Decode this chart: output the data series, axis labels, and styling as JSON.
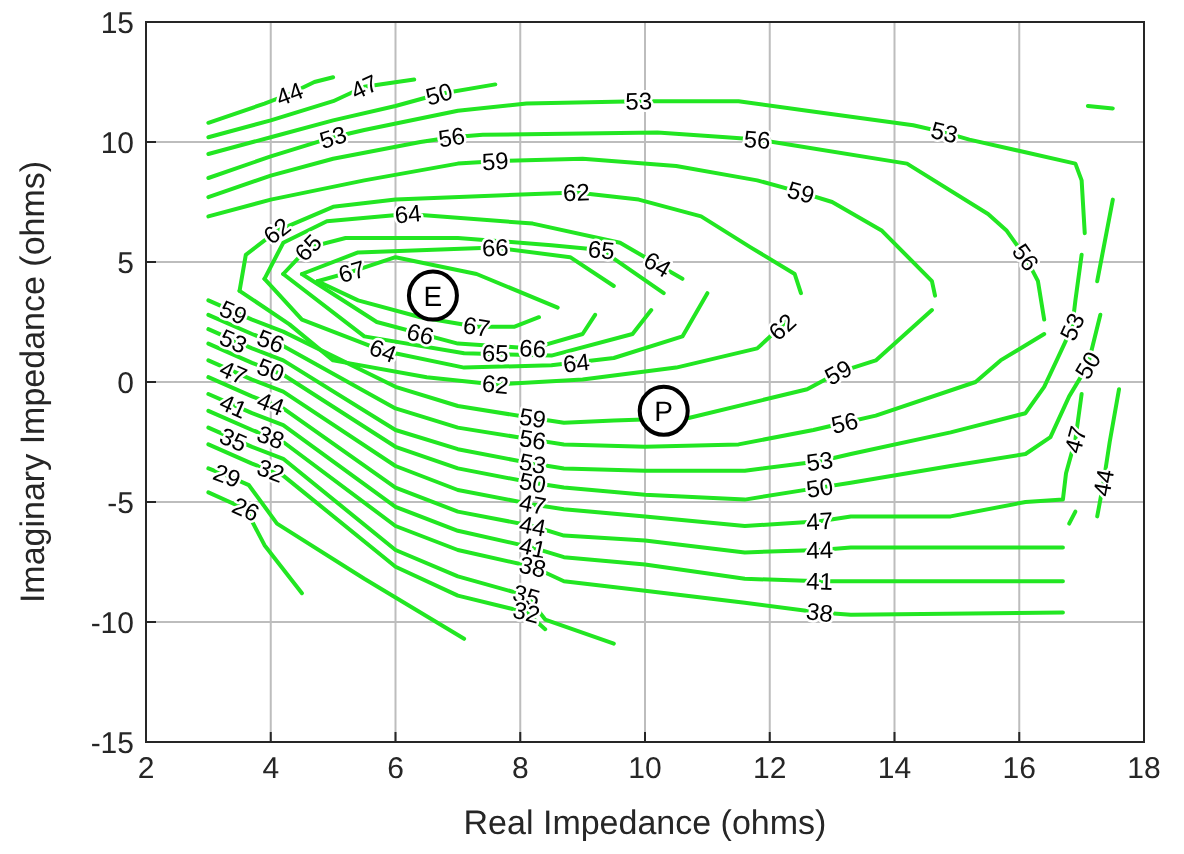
{
  "chart_data": {
    "type": "line",
    "xlabel": "Real Impedance (ohms)",
    "ylabel": "Imaginary Impedance (ohms)",
    "xlim": [
      2,
      18
    ],
    "xticks": [
      2,
      4,
      6,
      8,
      10,
      12,
      14,
      16,
      18
    ],
    "ylim": [
      -15,
      15
    ],
    "yticks": [
      -15,
      -10,
      -5,
      0,
      5,
      10,
      15
    ],
    "grid": true,
    "line_style": "solid",
    "series": [
      {
        "color": "#22e622",
        "x": [
          4.75,
          5.3,
          6.0,
          7.3,
          8.6
        ],
        "values": [
          4.2,
          4.6,
          5.2,
          4.5,
          3.1
        ]
      },
      {
        "color": "#22e622",
        "x": [
          4.75,
          5.4,
          6.4,
          7.3,
          7.9,
          8.3
        ],
        "values": [
          4.2,
          3.4,
          2.7,
          2.3,
          2.3,
          2.7
        ]
      },
      {
        "color": "#22e622",
        "x": [
          4.5,
          5.4,
          7.6,
          8.8,
          9.5
        ],
        "values": [
          4.5,
          5.4,
          5.6,
          5.2,
          4.0
        ]
      },
      {
        "color": "#22e622",
        "x": [
          4.5,
          5.7,
          7.0,
          8.2,
          9.0,
          9.2
        ],
        "values": [
          4.5,
          2.5,
          1.6,
          1.4,
          2.0,
          2.8
        ]
      },
      {
        "color": "#22e622",
        "x": [
          4.2,
          4.6,
          5.2,
          7.0,
          8.5,
          9.3,
          10.3
        ],
        "values": [
          4.5,
          5.6,
          6.0,
          6.0,
          5.7,
          5.5,
          3.7
        ]
      },
      {
        "color": "#22e622",
        "x": [
          4.2,
          5.5,
          7.1,
          8.5,
          9.8,
          10.1
        ],
        "values": [
          4.5,
          1.9,
          1.2,
          1.1,
          2.0,
          3.0
        ]
      },
      {
        "color": "#22e622",
        "x": [
          3.9,
          4.2,
          4.9,
          6.2,
          8.2,
          9.6,
          10.6
        ],
        "values": [
          4.3,
          5.8,
          6.7,
          7.0,
          6.6,
          5.8,
          4.3
        ]
      },
      {
        "color": "#22e622",
        "x": [
          3.9,
          4.5,
          5.8,
          7.1,
          8.5,
          9.5,
          10.6,
          11.0
        ],
        "values": [
          4.3,
          2.6,
          1.3,
          0.6,
          0.7,
          1.0,
          1.9,
          3.7
        ]
      },
      {
        "color": "#22e622",
        "x": [
          3.5,
          3.6,
          4.1,
          5.0,
          6.0,
          8.9,
          9.9,
          10.9,
          11.7,
          12.4,
          12.5
        ],
        "values": [
          3.8,
          5.3,
          6.3,
          7.3,
          7.6,
          7.9,
          7.6,
          6.9,
          5.6,
          4.5,
          3.7
        ]
      },
      {
        "color": "#22e622",
        "x": [
          3.5,
          4.3,
          5.0,
          6.5,
          7.6,
          9.0,
          10.5,
          11.8,
          12.3
        ],
        "values": [
          3.8,
          2.4,
          0.9,
          0.2,
          -0.1,
          0.1,
          0.6,
          1.4,
          2.6
        ]
      },
      {
        "color": "#22e622",
        "x": [
          3.0,
          3.7,
          4.2,
          6.0,
          7.0,
          8.2,
          8.7,
          9.5,
          10.7,
          12.6,
          13.1,
          13.7,
          14.6
        ],
        "values": [
          3.4,
          2.6,
          2.1,
          -0.2,
          -1.0,
          -1.5,
          -1.7,
          -1.6,
          -1.5,
          -0.3,
          0.4,
          0.9,
          3.0
        ]
      },
      {
        "color": "#22e622",
        "x": [
          3.0,
          4.0,
          5.5,
          7.0,
          7.6,
          9.0,
          10.5,
          11.8,
          12.5,
          13.0,
          13.8,
          14.6,
          14.65
        ],
        "values": [
          6.9,
          7.6,
          8.4,
          9.1,
          9.2,
          9.3,
          9.0,
          8.4,
          7.9,
          7.5,
          6.3,
          4.2,
          3.6
        ]
      },
      {
        "color": "#22e622",
        "x": [
          3.0,
          3.7,
          4.2,
          6.0,
          7.0,
          8.2,
          8.7,
          10.0,
          11.5,
          12.7,
          13.2,
          13.7,
          15.3,
          15.7,
          16.4
        ],
        "values": [
          2.8,
          2.0,
          1.5,
          -1.1,
          -1.9,
          -2.4,
          -2.6,
          -2.7,
          -2.6,
          -2.0,
          -1.7,
          -1.4,
          0.0,
          0.9,
          2.0
        ]
      },
      {
        "color": "#22e622",
        "x": [
          3.0,
          4.0,
          5.0,
          6.4,
          6.9,
          7.4,
          10.2,
          11.3,
          11.8,
          12.3,
          14.2,
          15.5,
          15.8,
          16.1,
          16.3,
          16.4
        ],
        "values": [
          7.7,
          8.6,
          9.3,
          10.0,
          10.2,
          10.3,
          10.4,
          10.2,
          10.1,
          9.9,
          9.1,
          7.0,
          6.3,
          5.2,
          4.2,
          2.6
        ]
      },
      {
        "color": "#22e622",
        "x": [
          3.0,
          3.7,
          4.2,
          6.0,
          7.0,
          8.2,
          8.7,
          10.0,
          11.6,
          12.8,
          13.3,
          14.9,
          16.1,
          16.4,
          16.6,
          16.85,
          16.9,
          17.0
        ],
        "values": [
          2.2,
          1.4,
          0.9,
          -2.0,
          -2.8,
          -3.4,
          -3.6,
          -3.7,
          -3.7,
          -3.3,
          -3.0,
          -2.1,
          -1.3,
          -0.2,
          0.9,
          2.3,
          3.4,
          5.3
        ]
      },
      {
        "color": "#22e622",
        "x": [
          3.0,
          4.0,
          5.0,
          5.5,
          7.0,
          8.1,
          9.9,
          11.5,
          12.6,
          14.3,
          14.8,
          15.2,
          16.9,
          17.0,
          17.05
        ],
        "values": [
          8.5,
          9.4,
          10.2,
          10.5,
          11.3,
          11.6,
          11.7,
          11.7,
          11.3,
          10.7,
          10.4,
          10.1,
          9.1,
          8.4,
          6.2
        ]
      },
      {
        "color": "#22e622",
        "x": [
          3.0,
          3.7,
          4.2,
          6.0,
          7.0,
          8.2,
          8.7,
          10.0,
          11.6,
          12.8,
          13.3,
          14.9,
          16.1,
          16.5,
          16.8,
          17.1,
          17.3
        ],
        "values": [
          1.6,
          0.8,
          0.3,
          -2.7,
          -3.6,
          -4.2,
          -4.4,
          -4.7,
          -4.9,
          -4.4,
          -4.2,
          -3.5,
          -3.0,
          -2.3,
          -0.6,
          0.7,
          2.8
        ]
      },
      {
        "color": "#22e622",
        "x": [
          3.0,
          4.0,
          5.0,
          6.0,
          6.7,
          7.6
        ],
        "values": [
          9.5,
          10.2,
          10.9,
          11.5,
          12.0,
          12.4
        ]
      },
      {
        "color": "#22e622",
        "x": [
          17.25,
          17.5
        ],
        "values": [
          4.2,
          7.6
        ]
      },
      {
        "color": "#22e622",
        "x": [
          17.1,
          17.5
        ],
        "values": [
          11.5,
          11.4
        ]
      },
      {
        "color": "#22e622",
        "x": [
          3.0,
          3.7,
          4.2,
          6.0,
          7.0,
          8.2,
          8.7,
          10.0,
          11.6,
          12.8,
          13.3,
          14.9,
          16.1,
          16.7,
          16.75,
          16.9,
          17.0
        ],
        "values": [
          0.9,
          0.1,
          -0.4,
          -3.5,
          -4.5,
          -5.1,
          -5.3,
          -5.6,
          -6.0,
          -5.8,
          -5.6,
          -5.6,
          -5.0,
          -4.9,
          -3.8,
          -2.4,
          -0.5
        ]
      },
      {
        "color": "#22e622",
        "x": [
          3.0,
          4.0,
          5.0,
          5.5,
          6.3
        ],
        "values": [
          10.2,
          10.9,
          11.7,
          12.3,
          12.6
        ]
      },
      {
        "color": "#22e622",
        "x": [
          3.0,
          3.7,
          4.2,
          6.0,
          7.0,
          8.2,
          8.7,
          10.0,
          11.6,
          12.8,
          13.3,
          16.7
        ],
        "values": [
          0.2,
          -0.6,
          -1.1,
          -4.4,
          -5.4,
          -6.0,
          -6.4,
          -6.6,
          -7.1,
          -7.0,
          -6.9,
          -6.9
        ]
      },
      {
        "color": "#22e622",
        "x": [
          3.0,
          3.9,
          4.3,
          4.7,
          5.0
        ],
        "values": [
          10.8,
          11.6,
          12.0,
          12.5,
          12.7
        ]
      },
      {
        "color": "#22e622",
        "x": [
          17.25,
          17.35,
          17.45,
          17.6
        ],
        "values": [
          -5.6,
          -4.2,
          -2.5,
          -0.3
        ]
      },
      {
        "color": "#22e622",
        "x": [
          16.8,
          16.9
        ],
        "values": [
          -5.9,
          -5.4
        ]
      },
      {
        "color": "#22e622",
        "x": [
          3.0,
          3.7,
          4.2,
          6.0,
          7.0,
          8.2,
          8.7,
          10.0,
          11.6,
          12.8,
          13.3,
          16.7
        ],
        "values": [
          -0.5,
          -1.3,
          -1.8,
          -5.2,
          -6.2,
          -6.9,
          -7.3,
          -7.6,
          -8.2,
          -8.3,
          -8.3,
          -8.3
        ]
      },
      {
        "color": "#22e622",
        "x": [
          3.0,
          3.7,
          4.2,
          6.0,
          7.0,
          8.2,
          8.7,
          10.0,
          11.6,
          12.8,
          13.3,
          16.7
        ],
        "values": [
          -1.2,
          -2.0,
          -2.5,
          -6.0,
          -7.0,
          -7.7,
          -8.3,
          -8.7,
          -9.2,
          -9.6,
          -9.7,
          -9.6
        ]
      },
      {
        "color": "#22e622",
        "x": [
          3.0,
          3.7,
          4.2,
          6.0,
          7.0,
          8.1,
          8.4,
          9.5
        ],
        "values": [
          -1.9,
          -2.7,
          -3.2,
          -7.0,
          -8.1,
          -8.9,
          -9.9,
          -10.9
        ]
      },
      {
        "color": "#22e622",
        "x": [
          3.0,
          3.7,
          4.2,
          6.0,
          7.0,
          8.1,
          8.4
        ],
        "values": [
          -2.6,
          -3.4,
          -3.9,
          -7.7,
          -8.9,
          -9.6,
          -10.3
        ]
      },
      {
        "color": "#22e622",
        "x": [
          3.0,
          3.3,
          3.65,
          4.1,
          5.5,
          7.1
        ],
        "values": [
          -3.6,
          -3.9,
          -4.3,
          -5.9,
          -8.2,
          -10.7
        ]
      },
      {
        "color": "#22e622",
        "x": [
          3.0,
          3.6,
          3.9,
          4.5
        ],
        "values": [
          -4.6,
          -5.3,
          -6.8,
          -8.8
        ]
      },
      {
        "type": "scatter",
        "name": "E",
        "color": "#000000",
        "marker": "circle",
        "x": [
          6.6
        ],
        "values": [
          3.6
        ]
      },
      {
        "type": "scatter",
        "name": "P",
        "color": "#000000",
        "marker": "circle",
        "x": [
          10.3
        ],
        "values": [
          -1.2
        ]
      }
    ],
    "annotations": [
      {
        "text": "44",
        "x": 4.3,
        "y": 12.0
      },
      {
        "text": "47",
        "x": 5.5,
        "y": 12.3
      },
      {
        "text": "50",
        "x": 6.7,
        "y": 12.0
      },
      {
        "text": "53",
        "x": 5.0,
        "y": 10.2
      },
      {
        "text": "53",
        "x": 9.9,
        "y": 11.7
      },
      {
        "text": "53",
        "x": 14.8,
        "y": 10.4
      },
      {
        "text": "53",
        "x": 16.85,
        "y": 2.3
      },
      {
        "text": "53",
        "x": 12.8,
        "y": -3.3
      },
      {
        "text": "53",
        "x": 8.2,
        "y": -3.4
      },
      {
        "text": "56",
        "x": 6.9,
        "y": 10.2
      },
      {
        "text": "56",
        "x": 11.8,
        "y": 10.1
      },
      {
        "text": "56",
        "x": 16.1,
        "y": 5.2
      },
      {
        "text": "56",
        "x": 13.2,
        "y": -1.7
      },
      {
        "text": "56",
        "x": 8.2,
        "y": -2.4
      },
      {
        "text": "59",
        "x": 7.6,
        "y": 9.2
      },
      {
        "text": "59",
        "x": 12.5,
        "y": 7.9
      },
      {
        "text": "59",
        "x": 13.1,
        "y": 0.4
      },
      {
        "text": "59",
        "x": 8.2,
        "y": -1.5
      },
      {
        "text": "62",
        "x": 4.1,
        "y": 6.3
      },
      {
        "text": "62",
        "x": 8.9,
        "y": 7.9
      },
      {
        "text": "62",
        "x": 12.2,
        "y": 2.3
      },
      {
        "text": "62",
        "x": 7.6,
        "y": -0.1
      },
      {
        "text": "64",
        "x": 6.2,
        "y": 7.0
      },
      {
        "text": "64",
        "x": 10.2,
        "y": 4.9
      },
      {
        "text": "64",
        "x": 5.8,
        "y": 1.3
      },
      {
        "text": "64",
        "x": 8.9,
        "y": 0.8
      },
      {
        "text": "65",
        "x": 4.6,
        "y": 5.6
      },
      {
        "text": "65",
        "x": 9.3,
        "y": 5.5
      },
      {
        "text": "65",
        "x": 7.6,
        "y": 1.2
      },
      {
        "text": "66",
        "x": 7.6,
        "y": 5.6
      },
      {
        "text": "66",
        "x": 6.4,
        "y": 2.0
      },
      {
        "text": "66",
        "x": 8.2,
        "y": 1.4
      },
      {
        "text": "67",
        "x": 5.3,
        "y": 4.6
      },
      {
        "text": "67",
        "x": 7.3,
        "y": 2.3
      },
      {
        "text": "50",
        "x": 12.8,
        "y": -4.4
      },
      {
        "text": "50",
        "x": 8.2,
        "y": -4.2
      },
      {
        "text": "50",
        "x": 17.1,
        "y": 0.7
      },
      {
        "text": "47",
        "x": 12.8,
        "y": -5.8
      },
      {
        "text": "47",
        "x": 8.2,
        "y": -5.1
      },
      {
        "text": "47",
        "x": 16.9,
        "y": -2.4
      },
      {
        "text": "44",
        "x": 12.8,
        "y": -7.0
      },
      {
        "text": "44",
        "x": 8.2,
        "y": -6.0
      },
      {
        "text": "44",
        "x": 17.35,
        "y": -4.2
      },
      {
        "text": "41",
        "x": 12.8,
        "y": -8.3
      },
      {
        "text": "41",
        "x": 8.2,
        "y": -6.9
      },
      {
        "text": "38",
        "x": 12.8,
        "y": -9.6
      },
      {
        "text": "38",
        "x": 8.2,
        "y": -7.7
      },
      {
        "text": "35",
        "x": 8.1,
        "y": -8.9
      },
      {
        "text": "32",
        "x": 8.1,
        "y": -9.6
      },
      {
        "text": "59",
        "x": 3.4,
        "y": 2.9
      },
      {
        "text": "56",
        "x": 4.0,
        "y": 1.7
      },
      {
        "text": "53",
        "x": 3.4,
        "y": 1.7
      },
      {
        "text": "50",
        "x": 4.0,
        "y": 0.5
      },
      {
        "text": "47",
        "x": 3.4,
        "y": 0.4
      },
      {
        "text": "44",
        "x": 4.0,
        "y": -0.9
      },
      {
        "text": "41",
        "x": 3.4,
        "y": -1.0
      },
      {
        "text": "38",
        "x": 4.0,
        "y": -2.3
      },
      {
        "text": "35",
        "x": 3.4,
        "y": -2.4
      },
      {
        "text": "32",
        "x": 4.0,
        "y": -3.7
      },
      {
        "text": "29",
        "x": 3.3,
        "y": -3.9
      },
      {
        "text": "26",
        "x": 3.6,
        "y": -5.3
      }
    ]
  }
}
